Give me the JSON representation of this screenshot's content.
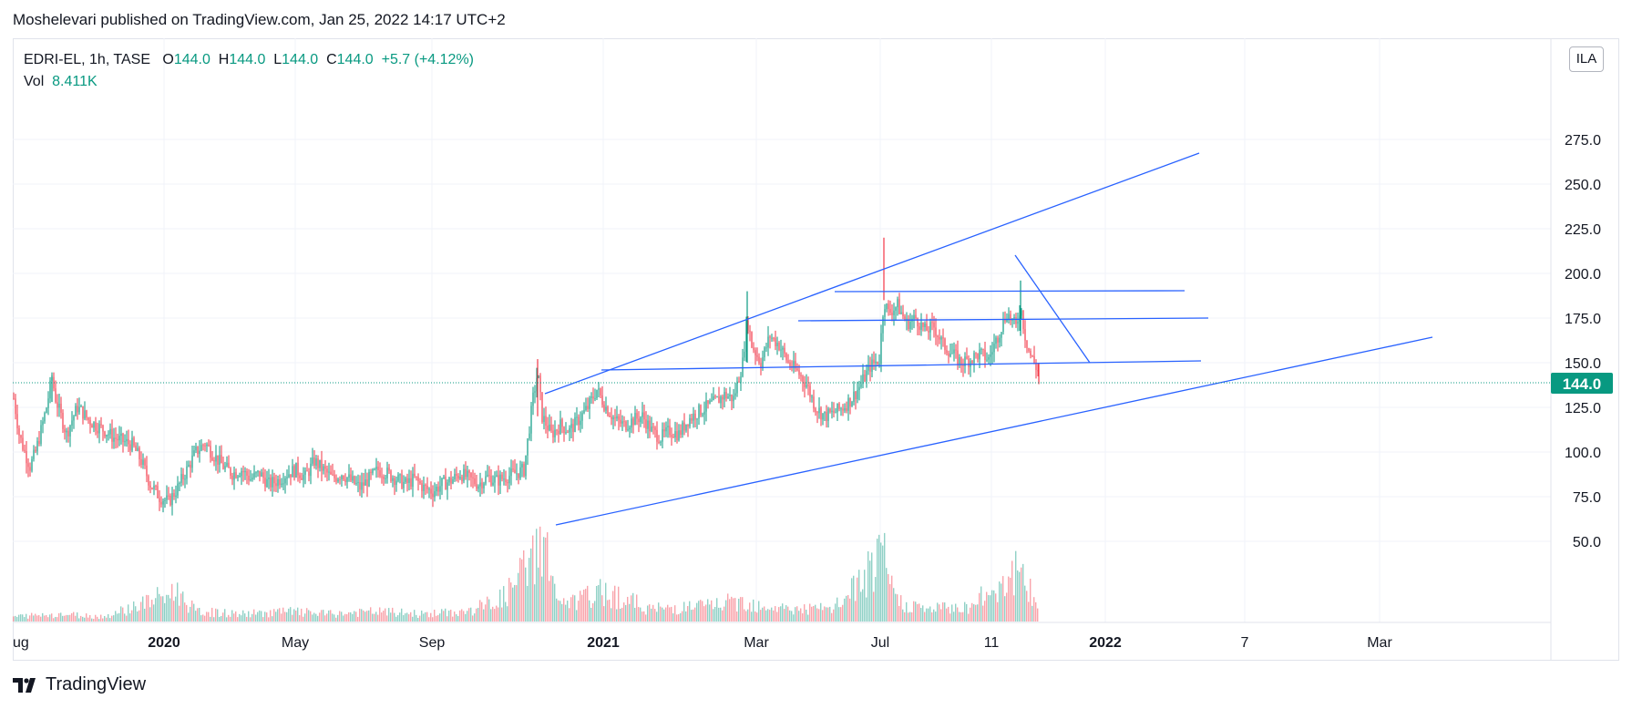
{
  "header": {
    "publisher_line": "Moshelevari published on TradingView.com, Jan 25, 2022 14:17 UTC+2"
  },
  "legend": {
    "symbol_line": "EDRI-EL, 1h, TASE",
    "open_label": "O",
    "open_value": "144.0",
    "high_label": "H",
    "high_value": "144.0",
    "low_label": "L",
    "low_value": "144.0",
    "close_label": "C",
    "close_value": "144.0",
    "change": "+5.7 (+4.12%)",
    "volume_label": "Vol",
    "volume_value": "8.411K"
  },
  "currency_badge": "ILA",
  "footer": {
    "brand": "TradingView"
  },
  "colors": {
    "up": "#089981",
    "down": "#f23645",
    "line": "#2962ff",
    "last_price": "#089981",
    "grid": "#f0f3fa"
  },
  "chart_data": {
    "type": "candlestick",
    "title": "",
    "y_axis": {
      "ticks": [
        "275.0",
        "250.0",
        "225.0",
        "200.0",
        "175.0",
        "150.0",
        "125.0",
        "100.0",
        "75.0",
        "50.0"
      ],
      "range": [
        25,
        300
      ]
    },
    "x_axis": {
      "labels": [
        {
          "text": "ug",
          "bold": false
        },
        {
          "text": "2020",
          "bold": true
        },
        {
          "text": "May",
          "bold": false
        },
        {
          "text": "Sep",
          "bold": false
        },
        {
          "text": "2021",
          "bold": true
        },
        {
          "text": "Mar",
          "bold": false
        },
        {
          "text": "Jul",
          "bold": false
        },
        {
          "text": "11",
          "bold": false
        },
        {
          "text": "2022",
          "bold": true
        },
        {
          "text": "7",
          "bold": false
        },
        {
          "text": "Mar",
          "bold": false
        }
      ]
    },
    "last_price": "144.0",
    "price_path": [
      [
        0,
        130
      ],
      [
        6,
        110
      ],
      [
        12,
        100
      ],
      [
        18,
        92
      ],
      [
        24,
        100
      ],
      [
        30,
        112
      ],
      [
        36,
        125
      ],
      [
        42,
        142
      ],
      [
        46,
        130
      ],
      [
        52,
        120
      ],
      [
        58,
        110
      ],
      [
        64,
        118
      ],
      [
        70,
        125
      ],
      [
        76,
        122
      ],
      [
        82,
        118
      ],
      [
        90,
        115
      ],
      [
        100,
        112
      ],
      [
        110,
        108
      ],
      [
        120,
        106
      ],
      [
        130,
        104
      ],
      [
        140,
        95
      ],
      [
        150,
        82
      ],
      [
        160,
        75
      ],
      [
        170,
        72
      ],
      [
        180,
        80
      ],
      [
        190,
        90
      ],
      [
        200,
        100
      ],
      [
        210,
        105
      ],
      [
        220,
        98
      ],
      [
        230,
        92
      ],
      [
        240,
        88
      ],
      [
        250,
        90
      ],
      [
        260,
        85
      ],
      [
        270,
        88
      ],
      [
        280,
        82
      ],
      [
        290,
        84
      ],
      [
        300,
        88
      ],
      [
        310,
        90
      ],
      [
        320,
        86
      ],
      [
        330,
        95
      ],
      [
        340,
        90
      ],
      [
        350,
        85
      ],
      [
        360,
        88
      ],
      [
        370,
        84
      ],
      [
        380,
        80
      ],
      [
        390,
        85
      ],
      [
        400,
        90
      ],
      [
        410,
        88
      ],
      [
        420,
        85
      ],
      [
        430,
        82
      ],
      [
        440,
        85
      ],
      [
        450,
        80
      ],
      [
        460,
        78
      ],
      [
        470,
        82
      ],
      [
        480,
        84
      ],
      [
        490,
        88
      ],
      [
        500,
        85
      ],
      [
        510,
        82
      ],
      [
        520,
        86
      ],
      [
        530,
        84
      ],
      [
        540,
        86
      ],
      [
        550,
        88
      ],
      [
        560,
        90
      ],
      [
        570,
        130
      ],
      [
        575,
        145
      ],
      [
        580,
        120
      ],
      [
        590,
        110
      ],
      [
        600,
        115
      ],
      [
        610,
        112
      ],
      [
        620,
        118
      ],
      [
        630,
        125
      ],
      [
        640,
        135
      ],
      [
        650,
        125
      ],
      [
        660,
        118
      ],
      [
        670,
        115
      ],
      [
        680,
        118
      ],
      [
        690,
        120
      ],
      [
        700,
        112
      ],
      [
        710,
        108
      ],
      [
        720,
        112
      ],
      [
        730,
        110
      ],
      [
        740,
        118
      ],
      [
        750,
        122
      ],
      [
        760,
        125
      ],
      [
        770,
        128
      ],
      [
        780,
        132
      ],
      [
        790,
        130
      ],
      [
        800,
        150
      ],
      [
        805,
        175
      ],
      [
        810,
        160
      ],
      [
        820,
        150
      ],
      [
        830,
        165
      ],
      [
        840,
        160
      ],
      [
        850,
        150
      ],
      [
        860,
        145
      ],
      [
        870,
        138
      ],
      [
        880,
        125
      ],
      [
        890,
        120
      ],
      [
        900,
        122
      ],
      [
        910,
        125
      ],
      [
        920,
        130
      ],
      [
        930,
        138
      ],
      [
        940,
        148
      ],
      [
        950,
        152
      ],
      [
        955,
        185
      ],
      [
        960,
        178
      ],
      [
        970,
        182
      ],
      [
        980,
        172
      ],
      [
        990,
        175
      ],
      [
        1000,
        168
      ],
      [
        1010,
        170
      ],
      [
        1020,
        160
      ],
      [
        1030,
        155
      ],
      [
        1040,
        150
      ],
      [
        1050,
        152
      ],
      [
        1060,
        155
      ],
      [
        1070,
        152
      ],
      [
        1080,
        165
      ],
      [
        1090,
        178
      ],
      [
        1100,
        170
      ],
      [
        1105,
        182
      ],
      [
        1110,
        165
      ],
      [
        1115,
        155
      ],
      [
        1120,
        150
      ],
      [
        1125,
        144
      ]
    ],
    "volume_path": [
      [
        0,
        2
      ],
      [
        50,
        3
      ],
      [
        100,
        2
      ],
      [
        180,
        12
      ],
      [
        200,
        4
      ],
      [
        250,
        3
      ],
      [
        300,
        4
      ],
      [
        350,
        3
      ],
      [
        400,
        4
      ],
      [
        450,
        3
      ],
      [
        500,
        4
      ],
      [
        540,
        10
      ],
      [
        570,
        25
      ],
      [
        580,
        35
      ],
      [
        590,
        20
      ],
      [
        600,
        6
      ],
      [
        650,
        12
      ],
      [
        700,
        5
      ],
      [
        750,
        6
      ],
      [
        800,
        8
      ],
      [
        850,
        5
      ],
      [
        900,
        5
      ],
      [
        955,
        25
      ],
      [
        970,
        8
      ],
      [
        1000,
        5
      ],
      [
        1050,
        6
      ],
      [
        1100,
        20
      ],
      [
        1110,
        15
      ],
      [
        1125,
        6
      ]
    ]
  }
}
